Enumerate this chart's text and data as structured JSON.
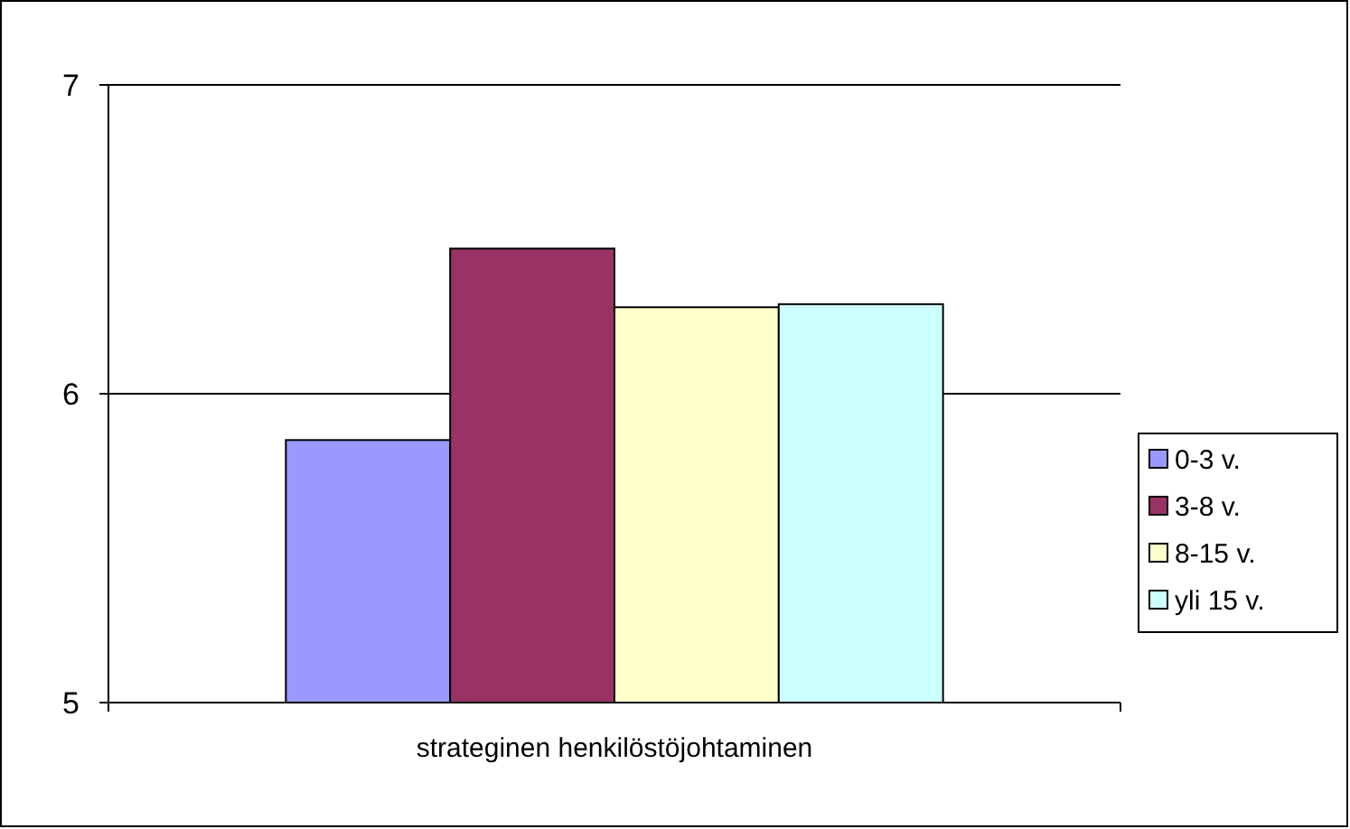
{
  "chart_data": {
    "type": "bar",
    "categories": [
      "strateginen henkilöstöjohtaminen"
    ],
    "series": [
      {
        "name": "0-3 v.",
        "color": "#9999ff",
        "values": [
          5.85
        ]
      },
      {
        "name": "3-8 v.",
        "color": "#993366",
        "values": [
          6.47
        ]
      },
      {
        "name": "8-15 v.",
        "color": "#ffffcc",
        "values": [
          6.28
        ]
      },
      {
        "name": "yli 15 v.",
        "color": "#ccffff",
        "values": [
          6.29
        ]
      }
    ],
    "ylim": [
      5,
      7
    ],
    "yticks": [
      5,
      6,
      7
    ],
    "grid": "y",
    "legend": "right"
  }
}
